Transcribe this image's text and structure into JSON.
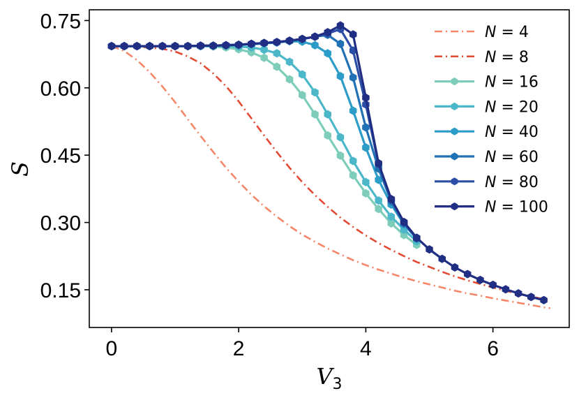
{
  "chart_data": {
    "type": "line",
    "xlabel": "V",
    "xlabel_sub": "3",
    "ylabel": "S",
    "xlim": [
      -0.35,
      7.2
    ],
    "ylim": [
      0.066,
      0.774
    ],
    "xticks": [
      0,
      2,
      4,
      6
    ],
    "xtick_labels": [
      "0",
      "2",
      "4",
      "6"
    ],
    "yticks": [
      0.15,
      0.3,
      0.45,
      0.6,
      0.75
    ],
    "ytick_labels": [
      "0.15",
      "0.30",
      "0.45",
      "0.60",
      "0.75"
    ],
    "grid": false,
    "legend_position": "top-right",
    "series": [
      {
        "name": "N = 4",
        "label_var": "N",
        "label_val": "4",
        "color": "#f4876a",
        "style": "dashdot",
        "marker": false,
        "x": [
          0,
          0.2,
          0.4,
          0.6,
          0.8,
          1.0,
          1.2,
          1.4,
          1.6,
          1.8,
          2.0,
          2.2,
          2.4,
          2.6,
          2.8,
          3.0,
          3.2,
          3.4,
          3.6,
          3.8,
          4.0,
          4.2,
          4.4,
          4.6,
          4.8,
          5.0,
          5.2,
          5.4,
          5.6,
          5.8,
          6.0,
          6.2,
          6.4,
          6.6,
          6.8,
          6.9
        ],
        "y": [
          0.693,
          0.682,
          0.662,
          0.635,
          0.603,
          0.568,
          0.53,
          0.493,
          0.457,
          0.422,
          0.391,
          0.362,
          0.336,
          0.313,
          0.292,
          0.273,
          0.257,
          0.242,
          0.229,
          0.216,
          0.205,
          0.195,
          0.186,
          0.177,
          0.169,
          0.162,
          0.155,
          0.148,
          0.142,
          0.137,
          0.131,
          0.126,
          0.121,
          0.116,
          0.111,
          0.109
        ]
      },
      {
        "name": "N = 8",
        "label_var": "N",
        "label_val": "8",
        "color": "#e34a33",
        "style": "dashdot",
        "marker": false,
        "x": [
          0,
          0.4,
          0.8,
          1.0,
          1.2,
          1.4,
          1.6,
          1.8,
          2.0,
          2.2,
          2.4,
          2.6,
          2.8,
          3.0,
          3.2,
          3.4,
          3.6,
          3.8,
          4.0,
          4.2,
          4.4,
          4.6,
          4.8,
          5.0,
          5.2,
          5.4,
          5.6,
          5.8,
          6.0,
          6.2,
          6.4,
          6.6,
          6.8,
          6.9
        ],
        "y": [
          0.693,
          0.692,
          0.687,
          0.681,
          0.67,
          0.655,
          0.632,
          0.604,
          0.57,
          0.532,
          0.494,
          0.457,
          0.422,
          0.39,
          0.361,
          0.335,
          0.311,
          0.29,
          0.271,
          0.254,
          0.239,
          0.225,
          0.212,
          0.201,
          0.19,
          0.18,
          0.171,
          0.163,
          0.155,
          0.148,
          0.141,
          0.135,
          0.129,
          0.126
        ]
      },
      {
        "name": "N = 16",
        "label_var": "N",
        "label_val": "16",
        "color": "#7ecdbb",
        "style": "solid",
        "marker": true,
        "x": [
          0,
          0.2,
          0.4,
          0.6,
          0.8,
          1.0,
          1.2,
          1.4,
          1.6,
          1.8,
          2.0,
          2.2,
          2.4,
          2.6,
          2.8,
          3.0,
          3.2,
          3.4,
          3.6,
          3.8,
          4.0,
          4.2,
          4.4,
          4.6,
          4.8
        ],
        "y": [
          0.693,
          0.693,
          0.693,
          0.693,
          0.693,
          0.693,
          0.693,
          0.693,
          0.692,
          0.69,
          0.686,
          0.679,
          0.667,
          0.647,
          0.619,
          0.584,
          0.541,
          0.494,
          0.449,
          0.405,
          0.365,
          0.33,
          0.298,
          0.272,
          0.25
        ]
      },
      {
        "name": "N = 20",
        "label_var": "N",
        "label_val": "20",
        "color": "#4bb7c9",
        "style": "solid",
        "marker": true,
        "x": [
          0,
          0.2,
          0.4,
          0.6,
          0.8,
          1.0,
          1.2,
          1.4,
          1.6,
          1.8,
          2.0,
          2.2,
          2.4,
          2.6,
          2.8,
          3.0,
          3.2,
          3.4,
          3.6,
          3.8,
          4.0,
          4.2,
          4.4,
          4.6,
          4.8
        ],
        "y": [
          0.693,
          0.693,
          0.693,
          0.693,
          0.693,
          0.693,
          0.693,
          0.693,
          0.693,
          0.693,
          0.692,
          0.69,
          0.685,
          0.677,
          0.658,
          0.63,
          0.59,
          0.541,
          0.49,
          0.437,
          0.39,
          0.349,
          0.313,
          0.284,
          0.258
        ]
      },
      {
        "name": "N = 40",
        "label_var": "N",
        "label_val": "40",
        "color": "#2c9cc8",
        "style": "solid",
        "marker": true,
        "x": [
          0,
          0.2,
          0.4,
          0.6,
          0.8,
          1.0,
          1.2,
          1.4,
          1.6,
          1.8,
          2.0,
          2.2,
          2.4,
          2.6,
          2.8,
          3.0,
          3.2,
          3.4,
          3.6,
          3.8,
          4.0,
          4.2,
          4.4,
          4.6,
          4.8
        ],
        "y": [
          0.693,
          0.693,
          0.693,
          0.693,
          0.693,
          0.693,
          0.693,
          0.693,
          0.694,
          0.695,
          0.696,
          0.697,
          0.699,
          0.701,
          0.704,
          0.703,
          0.695,
          0.677,
          0.626,
          0.549,
          0.467,
          0.395,
          0.34,
          0.296,
          0.264
        ]
      },
      {
        "name": "N = 60",
        "label_var": "N",
        "label_val": "60",
        "color": "#2171b5",
        "style": "solid",
        "marker": true,
        "x": [
          0,
          0.2,
          0.4,
          0.6,
          0.8,
          1.0,
          1.2,
          1.4,
          1.6,
          1.8,
          2.0,
          2.2,
          2.4,
          2.6,
          2.8,
          3.0,
          3.2,
          3.4,
          3.6,
          3.8,
          4.0,
          4.2,
          4.4,
          4.6,
          4.8
        ],
        "y": [
          0.693,
          0.693,
          0.693,
          0.693,
          0.693,
          0.693,
          0.693,
          0.694,
          0.694,
          0.695,
          0.696,
          0.698,
          0.7,
          0.702,
          0.705,
          0.709,
          0.714,
          0.718,
          0.698,
          0.623,
          0.512,
          0.42,
          0.347,
          0.298,
          0.264
        ]
      },
      {
        "name": "N = 80",
        "label_var": "N",
        "label_val": "80",
        "color": "#2b4fa6",
        "style": "solid",
        "marker": true,
        "x": [
          0,
          0.2,
          0.4,
          0.6,
          0.8,
          1.0,
          1.2,
          1.4,
          1.6,
          1.8,
          2.0,
          2.2,
          2.4,
          2.6,
          2.8,
          3.0,
          3.2,
          3.4,
          3.6,
          3.8,
          4.0,
          4.2,
          4.4,
          4.6,
          4.8
        ],
        "y": [
          0.693,
          0.693,
          0.693,
          0.693,
          0.693,
          0.693,
          0.693,
          0.694,
          0.694,
          0.695,
          0.696,
          0.698,
          0.7,
          0.702,
          0.705,
          0.709,
          0.714,
          0.721,
          0.731,
          0.683,
          0.563,
          0.43,
          0.351,
          0.3,
          0.265
        ]
      },
      {
        "name": "N = 100",
        "label_var": "N",
        "label_val": "100",
        "color": "#202e84",
        "style": "solid",
        "marker": true,
        "x": [
          0,
          0.2,
          0.4,
          0.6,
          0.8,
          1.0,
          1.2,
          1.4,
          1.6,
          1.8,
          2.0,
          2.2,
          2.4,
          2.6,
          2.8,
          3.0,
          3.2,
          3.4,
          3.6,
          3.8,
          4.0,
          4.2,
          4.4,
          4.6,
          4.8,
          5.0,
          5.2,
          5.4,
          5.6,
          5.8,
          6.0,
          6.2,
          6.4,
          6.6,
          6.8
        ],
        "y": [
          0.693,
          0.693,
          0.693,
          0.693,
          0.693,
          0.693,
          0.693,
          0.694,
          0.694,
          0.695,
          0.696,
          0.698,
          0.7,
          0.702,
          0.705,
          0.709,
          0.714,
          0.724,
          0.739,
          0.719,
          0.578,
          0.432,
          0.352,
          0.301,
          0.266,
          0.24,
          0.219,
          0.2,
          0.185,
          0.172,
          0.161,
          0.151,
          0.142,
          0.134,
          0.127
        ]
      }
    ]
  }
}
